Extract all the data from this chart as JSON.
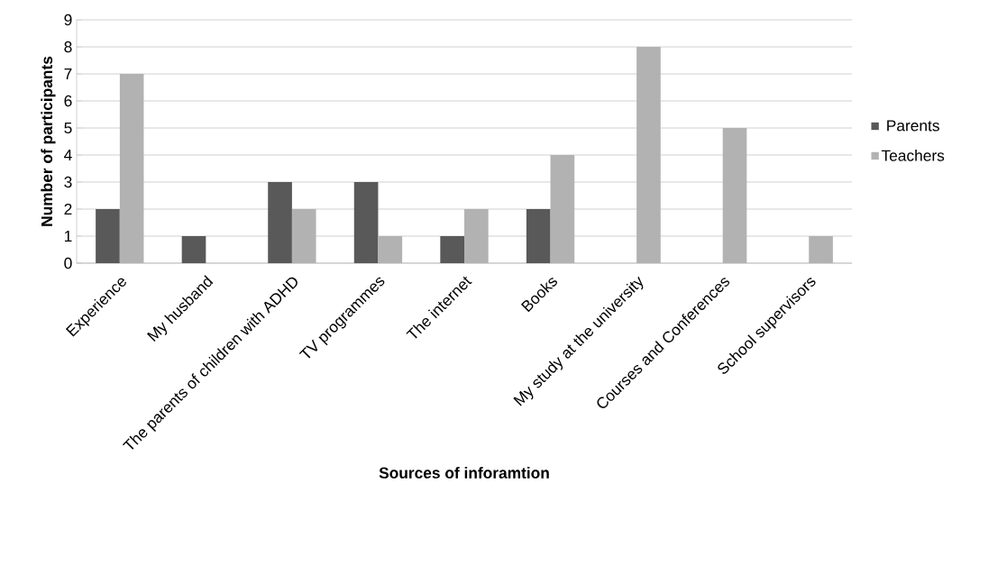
{
  "chart_data": {
    "type": "bar",
    "xlabel": "Sources of inforamtion",
    "ylabel": "Number of participants",
    "categories": [
      "Experience",
      "My husband",
      "The parents of children with ADHD",
      "TV programmes",
      "The internet",
      "Books",
      "My study at the university",
      "Courses and Conferences",
      "School supervisors"
    ],
    "series": [
      {
        "name": "Parents",
        "color": "#595959",
        "values": [
          2,
          1,
          3,
          3,
          1,
          2,
          null,
          null,
          null
        ]
      },
      {
        "name": "Teachers",
        "color": "#b2b2b2",
        "values": [
          7,
          null,
          2,
          1,
          2,
          4,
          8,
          5,
          1
        ]
      }
    ],
    "ylim": [
      0,
      9
    ],
    "yticks": [
      0,
      1,
      2,
      3,
      4,
      5,
      6,
      7,
      8,
      9
    ],
    "grid": "y",
    "legend": "right"
  }
}
